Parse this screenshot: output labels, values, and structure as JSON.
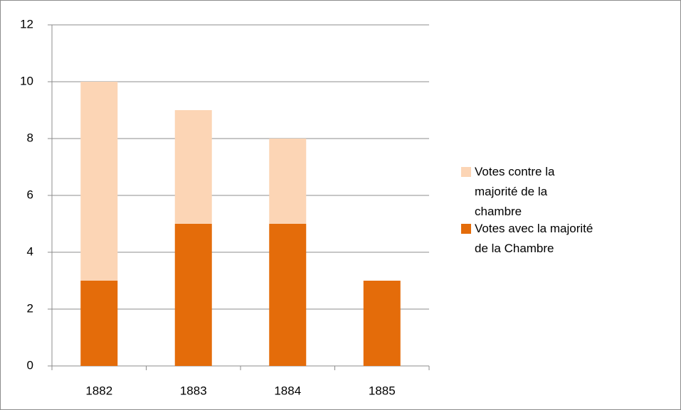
{
  "chart_data": {
    "type": "bar",
    "stacked": true,
    "categories": [
      "1882",
      "1883",
      "1884",
      "1885"
    ],
    "series": [
      {
        "name": "Votes avec la majorité de la Chambre",
        "color": "#e46c0a",
        "values": [
          3,
          5,
          5,
          3
        ]
      },
      {
        "name": "Votes contre la majorité de la chambre",
        "color": "#fcd5b5",
        "values": [
          7,
          4,
          3,
          0
        ]
      }
    ],
    "ylim": [
      0,
      12
    ],
    "yticks": [
      0,
      2,
      4,
      6,
      8,
      10,
      12
    ],
    "grid": true,
    "legend": "right"
  }
}
